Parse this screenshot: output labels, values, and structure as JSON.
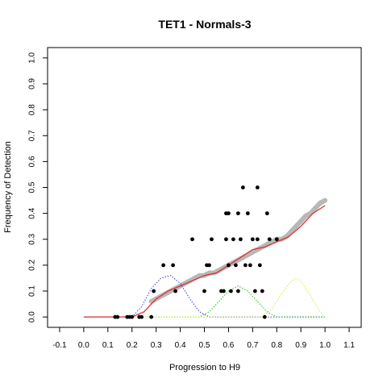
{
  "chart_data": {
    "type": "scatter",
    "title": "TET1 - Normals-3",
    "xlabel": "Progression to H9",
    "ylabel": "Frequency of Detection",
    "xlim": [
      -0.15,
      1.15
    ],
    "ylim": [
      -0.04,
      1.04
    ],
    "xticks": [
      -0.1,
      0.0,
      0.1,
      0.2,
      0.3,
      0.4,
      0.5,
      0.6,
      0.7,
      0.8,
      0.9,
      1.0,
      1.1
    ],
    "xtick_labels": [
      "-0.1",
      "0.0",
      "0.1",
      "0.2",
      "0.3",
      "0.4",
      "0.5",
      "0.6",
      "0.7",
      "0.8",
      "0.9",
      "1.0",
      "1.1"
    ],
    "yticks": [
      0.0,
      0.1,
      0.2,
      0.3,
      0.4,
      0.5,
      0.6,
      0.7,
      0.8,
      0.9,
      1.0
    ],
    "ytick_labels": [
      "0.0",
      "0.1",
      "0.2",
      "0.3",
      "0.4",
      "0.5",
      "0.6",
      "0.7",
      "0.8",
      "0.9",
      "1.0"
    ],
    "grid": false,
    "legend": "none",
    "points": [
      {
        "x": 0.13,
        "y": 0.0
      },
      {
        "x": 0.14,
        "y": 0.0
      },
      {
        "x": 0.18,
        "y": 0.0
      },
      {
        "x": 0.19,
        "y": 0.0
      },
      {
        "x": 0.2,
        "y": 0.0
      },
      {
        "x": 0.23,
        "y": 0.0
      },
      {
        "x": 0.24,
        "y": 0.0
      },
      {
        "x": 0.28,
        "y": 0.0
      },
      {
        "x": 0.29,
        "y": 0.1
      },
      {
        "x": 0.33,
        "y": 0.2
      },
      {
        "x": 0.37,
        "y": 0.2
      },
      {
        "x": 0.38,
        "y": 0.1
      },
      {
        "x": 0.45,
        "y": 0.3
      },
      {
        "x": 0.5,
        "y": 0.1
      },
      {
        "x": 0.51,
        "y": 0.2
      },
      {
        "x": 0.52,
        "y": 0.2
      },
      {
        "x": 0.53,
        "y": 0.3
      },
      {
        "x": 0.57,
        "y": 0.1
      },
      {
        "x": 0.58,
        "y": 0.1
      },
      {
        "x": 0.59,
        "y": 0.3
      },
      {
        "x": 0.59,
        "y": 0.4
      },
      {
        "x": 0.6,
        "y": 0.4
      },
      {
        "x": 0.6,
        "y": 0.2
      },
      {
        "x": 0.61,
        "y": 0.1
      },
      {
        "x": 0.62,
        "y": 0.3
      },
      {
        "x": 0.63,
        "y": 0.2
      },
      {
        "x": 0.64,
        "y": 0.1
      },
      {
        "x": 0.64,
        "y": 0.4
      },
      {
        "x": 0.65,
        "y": 0.3
      },
      {
        "x": 0.66,
        "y": 0.5
      },
      {
        "x": 0.67,
        "y": 0.2
      },
      {
        "x": 0.68,
        "y": 0.4
      },
      {
        "x": 0.69,
        "y": 0.2
      },
      {
        "x": 0.7,
        "y": 0.3
      },
      {
        "x": 0.71,
        "y": 0.1
      },
      {
        "x": 0.72,
        "y": 0.5
      },
      {
        "x": 0.72,
        "y": 0.3
      },
      {
        "x": 0.73,
        "y": 0.2
      },
      {
        "x": 0.74,
        "y": 0.1
      },
      {
        "x": 0.75,
        "y": 0.0
      },
      {
        "x": 0.76,
        "y": 0.4
      },
      {
        "x": 0.77,
        "y": 0.3
      },
      {
        "x": 0.8,
        "y": 0.3
      }
    ],
    "smooth_curve": {
      "color": "#b8b8b8",
      "x": [
        0.28,
        0.3,
        0.32,
        0.34,
        0.36,
        0.38,
        0.4,
        0.42,
        0.44,
        0.46,
        0.48,
        0.5,
        0.52,
        0.54,
        0.56,
        0.58,
        0.6,
        0.62,
        0.64,
        0.66,
        0.68,
        0.7,
        0.72,
        0.74,
        0.76,
        0.78,
        0.8,
        0.82,
        0.84,
        0.86,
        0.88,
        0.9,
        0.92,
        0.94,
        0.96,
        0.98,
        1.0
      ],
      "y": [
        0.06,
        0.07,
        0.08,
        0.09,
        0.1,
        0.11,
        0.12,
        0.13,
        0.14,
        0.15,
        0.16,
        0.16,
        0.17,
        0.17,
        0.18,
        0.19,
        0.2,
        0.21,
        0.22,
        0.23,
        0.24,
        0.25,
        0.26,
        0.27,
        0.28,
        0.29,
        0.3,
        0.3,
        0.31,
        0.33,
        0.35,
        0.37,
        0.39,
        0.4,
        0.42,
        0.44,
        0.45
      ]
    },
    "fit_curve": {
      "color": "#e03030",
      "x": [
        0.0,
        0.05,
        0.1,
        0.15,
        0.2,
        0.25,
        0.3,
        0.35,
        0.4,
        0.45,
        0.5,
        0.55,
        0.6,
        0.65,
        0.7,
        0.75,
        0.8,
        0.85,
        0.9,
        0.95,
        1.0
      ],
      "y": [
        0.0,
        0.0,
        0.0,
        0.0,
        0.0,
        0.02,
        0.07,
        0.1,
        0.12,
        0.14,
        0.16,
        0.17,
        0.2,
        0.23,
        0.26,
        0.27,
        0.29,
        0.31,
        0.35,
        0.4,
        0.43
      ]
    },
    "component_curves": [
      {
        "color": "#3a3adc",
        "style": "dotted",
        "x": [
          0.0,
          0.2,
          0.24,
          0.28,
          0.32,
          0.36,
          0.4,
          0.44,
          0.48,
          0.52,
          1.0
        ],
        "y": [
          0.0,
          0.0,
          0.04,
          0.11,
          0.15,
          0.16,
          0.13,
          0.07,
          0.02,
          0.0,
          0.0
        ]
      },
      {
        "color": "#22b822",
        "style": "dotted",
        "x": [
          0.0,
          0.48,
          0.52,
          0.56,
          0.6,
          0.64,
          0.68,
          0.72,
          0.76,
          0.8,
          1.0
        ],
        "y": [
          0.0,
          0.0,
          0.02,
          0.06,
          0.1,
          0.12,
          0.1,
          0.06,
          0.02,
          0.0,
          0.0
        ]
      },
      {
        "color": "#c8ee40",
        "style": "dotted",
        "x": [
          0.0,
          0.74,
          0.78,
          0.82,
          0.86,
          0.88,
          0.9,
          0.94,
          0.98,
          1.0
        ],
        "y": [
          0.0,
          0.0,
          0.03,
          0.09,
          0.14,
          0.15,
          0.14,
          0.08,
          0.02,
          0.0
        ]
      }
    ]
  }
}
